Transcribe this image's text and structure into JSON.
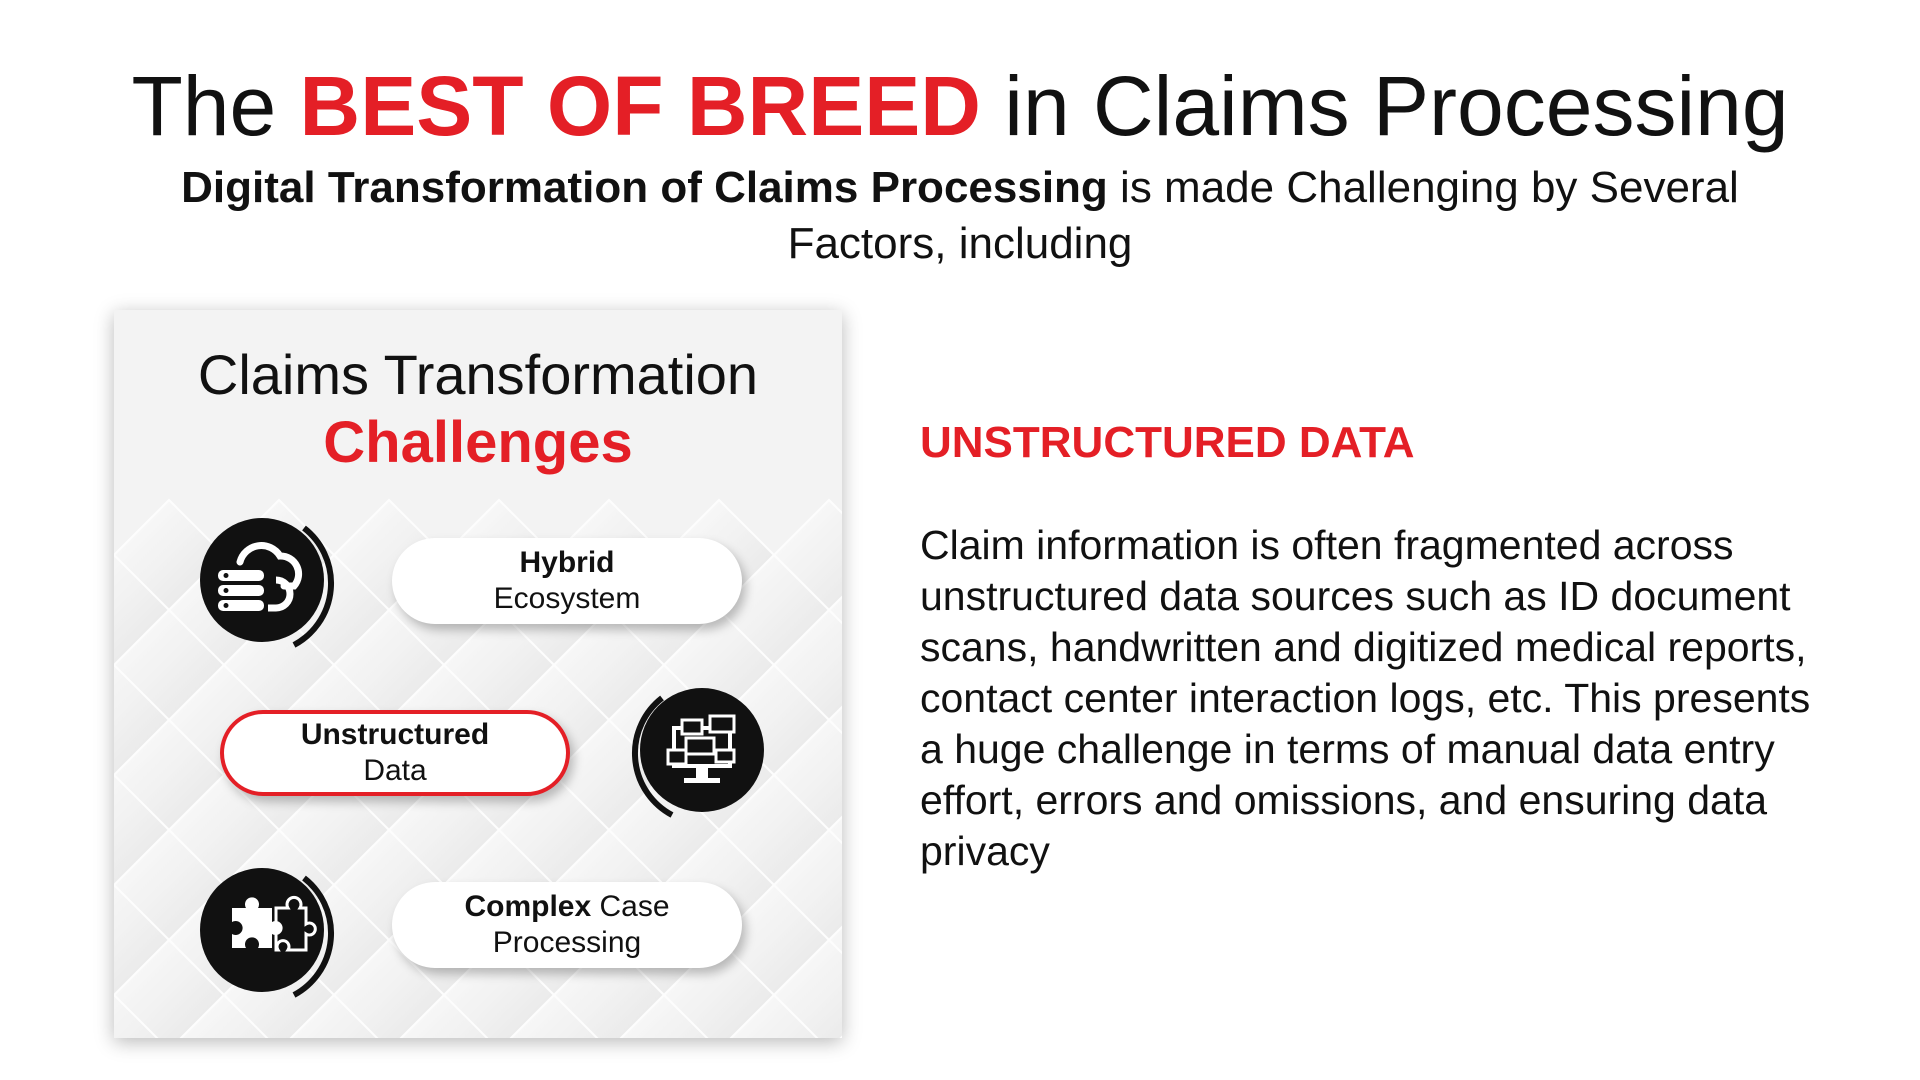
{
  "header": {
    "title_pre": "The ",
    "title_highlight": "BEST OF BREED",
    "title_post": " in Claims Processing",
    "subtitle_bold": "Digital Transformation of Claims Processing",
    "subtitle_rest": " is made Challenging by Several Factors, including"
  },
  "panel": {
    "title": "Claims Transformation",
    "subtitle": "Challenges",
    "items": [
      {
        "bold": "Hybrid",
        "rest": "Ecosystem",
        "icon": "cloud-server-icon"
      },
      {
        "bold": "Unstructured",
        "rest": "Data",
        "icon": "documents-monitor-icon"
      },
      {
        "bold": "Complex",
        "rest_inline": " Case",
        "rest": "Processing",
        "icon": "puzzle-icon"
      }
    ]
  },
  "detail": {
    "heading": "UNSTRUCTURED DATA",
    "body": "Claim information is often fragmented across unstructured data sources such as ID document scans, handwritten and digitized medical reports, contact center interaction logs, etc. This presents a huge challenge in terms of manual data entry effort, errors and omissions, and ensuring data privacy"
  },
  "colors": {
    "accent": "#e41f26",
    "text": "#111111",
    "panel_bg": "#f3f3f3"
  }
}
